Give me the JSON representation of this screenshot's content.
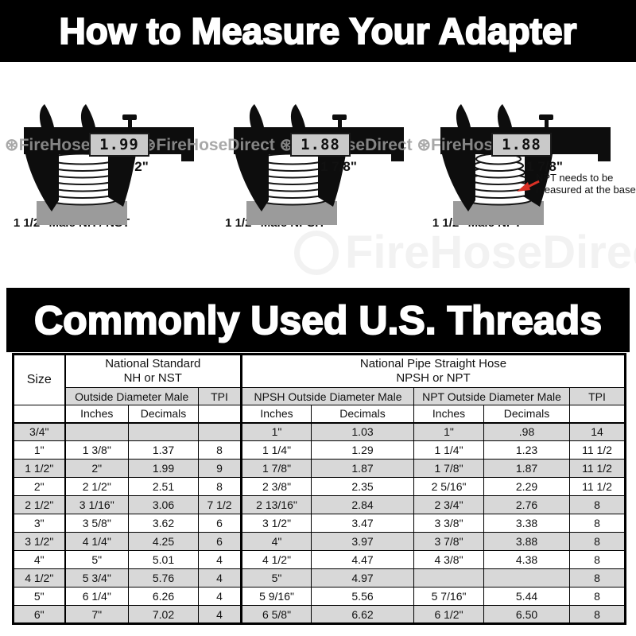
{
  "banner_top": {
    "text": "How to Measure Your Adapter"
  },
  "banner_table": {
    "text": "Commonly Used U.S. Threads"
  },
  "watermark": {
    "brand": "FireHoseDirect",
    "row_text": "⊛FireHoseDirect  ⊛FireHoseDirect  ⊛FireHoseDirect  ⊛FireHoseDirect"
  },
  "calipers": [
    {
      "reading": "1.99",
      "beam_label": "2\"",
      "caption": "1 1/2\" Male NH / NST"
    },
    {
      "reading": "1.88",
      "beam_label": "1 7/8\"",
      "caption": "1 1/2\" Male NPSH"
    },
    {
      "reading": "1.88",
      "beam_label": "1 7/8\"",
      "caption": "1 1/2\" Male NPT",
      "note_line1": "NPT needs to be",
      "note_line2": "measured at the base",
      "note_arrow_color": "#d93025"
    }
  ],
  "table": {
    "size_header": "Size",
    "group_nh": {
      "line1": "National Standard",
      "line2": "NH or NST"
    },
    "group_np": {
      "line1": "National Pipe Straight Hose",
      "line2": "NPSH or NPT"
    },
    "sub_od_male": "Outside Diameter Male",
    "sub_npsh_od": "NPSH Outside Diameter Male",
    "sub_npt_od": "NPT Outside Diameter Male",
    "tpi": "TPI",
    "col_inches": "Inches",
    "col_decimals": "Decimals",
    "rows": [
      [
        "3/4\"",
        "",
        "",
        "",
        "1\"",
        "1.03",
        "1\"",
        ".98",
        "14"
      ],
      [
        "1\"",
        "1 3/8\"",
        "1.37",
        "8",
        "1 1/4\"",
        "1.29",
        "1 1/4\"",
        "1.23",
        "11 1/2"
      ],
      [
        "1 1/2\"",
        "2\"",
        "1.99",
        "9",
        "1 7/8\"",
        "1.87",
        "1 7/8\"",
        "1.87",
        "11 1/2"
      ],
      [
        "2\"",
        "2 1/2\"",
        "2.51",
        "8",
        "2 3/8\"",
        "2.35",
        "2 5/16\"",
        "2.29",
        "11 1/2"
      ],
      [
        "2 1/2\"",
        "3 1/16\"",
        "3.06",
        "7 1/2",
        "2 13/16\"",
        "2.84",
        "2 3/4\"",
        "2.76",
        "8"
      ],
      [
        "3\"",
        "3 5/8\"",
        "3.62",
        "6",
        "3 1/2\"",
        "3.47",
        "3 3/8\"",
        "3.38",
        "8"
      ],
      [
        "3 1/2\"",
        "4 1/4\"",
        "4.25",
        "6",
        "4\"",
        "3.97",
        "3 7/8\"",
        "3.88",
        "8"
      ],
      [
        "4\"",
        "5\"",
        "5.01",
        "4",
        "4 1/2\"",
        "4.47",
        "4 3/8\"",
        "4.38",
        "8"
      ],
      [
        "4 1/2\"",
        "5 3/4\"",
        "5.76",
        "4",
        "5\"",
        "4.97",
        "",
        "",
        "8"
      ],
      [
        "5\"",
        "6 1/4\"",
        "6.26",
        "4",
        "5 9/16\"",
        "5.56",
        "5 7/16\"",
        "5.44",
        "8"
      ],
      [
        "6\"",
        "7\"",
        "7.02",
        "4",
        "6 5/8\"",
        "6.62",
        "6 1/2\"",
        "6.50",
        "8"
      ]
    ]
  }
}
